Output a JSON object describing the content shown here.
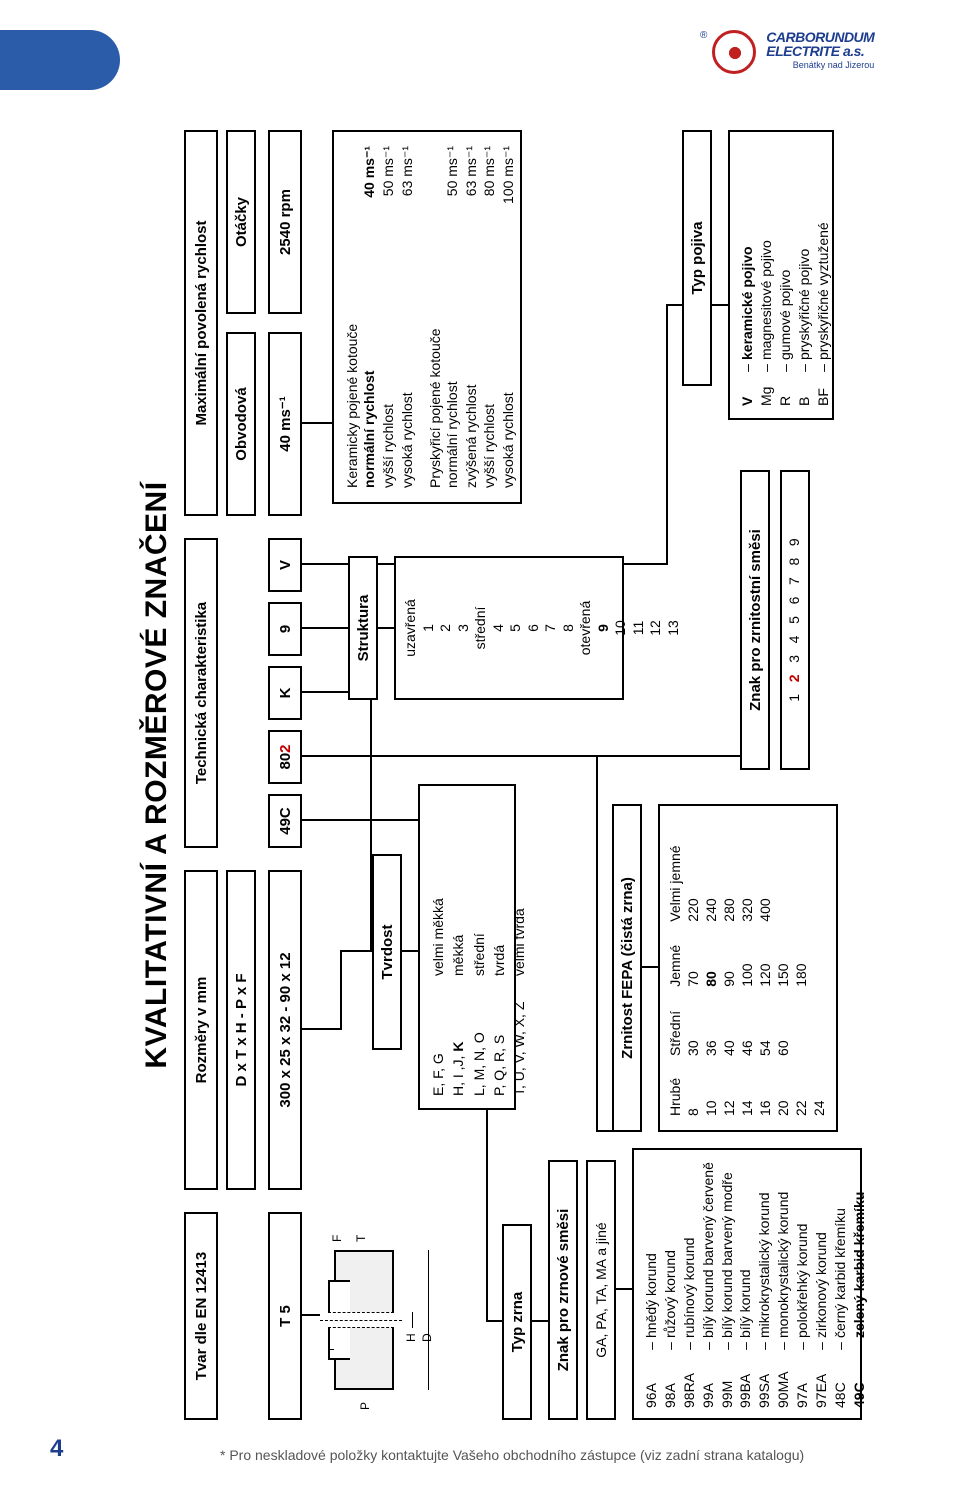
{
  "page": {
    "number": "4",
    "footnote": "* Pro neskladové položky kontaktujte Vašeho obchodního zástupce (viz zadní strana katalogu)"
  },
  "logo": {
    "line1": "CARBORUNDUM",
    "line2": "ELECTRITE a.s.",
    "sub": "Benátky nad Jizerou",
    "reg": "®"
  },
  "title": "KVALITATIVNÍ A ROZMĚROVÉ ZNAČENÍ",
  "headers": {
    "tvar": "Tvar dle EN 12413",
    "rozmery": "Rozměry v mm",
    "rozmery_sub": "D x T x H - P x F",
    "tech": "Technická charakteristika",
    "max": "Maximální povolená rychlost",
    "obvodova": "Obvodová",
    "otacky": "Otáčky"
  },
  "values": {
    "tvar": "T 5",
    "rozmery": "300 x 25 x 32 - 90 x 12",
    "code1": "49C",
    "code2a": "80",
    "code2b": "2",
    "code3": "K",
    "code4": "9",
    "code5": "V",
    "obvodova": "40 ms⁻¹",
    "otacky": "2540 rpm"
  },
  "shape_labels": {
    "P": "P",
    "F": "F",
    "T": "T",
    "H": "H",
    "D": "D"
  },
  "section_titles": {
    "typzrna": "Typ zrna",
    "znak_zrnove": "Znak pro zrnové směsi",
    "znak_zrnove_sub": "GA, PA, TA, MA a jiné",
    "tvrdost": "Tvrdost",
    "struktura": "Struktura",
    "zrnitost": "Zrnitost FEPA (čistá zrna)",
    "znak_zrnitostni": "Znak pro zrnitostní směsi",
    "typpojiva": "Typ pojiva"
  },
  "grain_types": [
    {
      "code": "96A",
      "name": "hnědý korund",
      "bold": false
    },
    {
      "code": "98A",
      "name": "růžový korund",
      "bold": false
    },
    {
      "code": "98RA",
      "name": "rubínový korund",
      "bold": false
    },
    {
      "code": "99A",
      "name": "bílý korund barvený červeně",
      "bold": false
    },
    {
      "code": "99M",
      "name": "bílý korund barvený modře",
      "bold": false
    },
    {
      "code": "99BA",
      "name": "bílý korund",
      "bold": false
    },
    {
      "code": "99SA",
      "name": "mikrokrystalický korund",
      "bold": false
    },
    {
      "code": "90MA",
      "name": "monokrystalický korund",
      "bold": false
    },
    {
      "code": "97A",
      "name": "polokřehký korund",
      "bold": false
    },
    {
      "code": "97EA",
      "name": "zirkonový korund",
      "bold": false
    },
    {
      "code": "48C",
      "name": "černý karbid křemíku",
      "bold": false
    },
    {
      "code": "49C",
      "name": "zelený karbid křemíku",
      "bold": true
    }
  ],
  "hardness": [
    {
      "codes": "E, F, G",
      "label": "velmi měkká"
    },
    {
      "codes": "H, I ,J, <b>K</b>",
      "label": "měkká"
    },
    {
      "codes": "L, M, N, O",
      "label": "střední"
    },
    {
      "codes": "P, Q, R, S",
      "label": "tvrdá"
    },
    {
      "codes": "T, U, V, W, X, Z",
      "label": "velmi tvrdá"
    }
  ],
  "structure": {
    "closed_label": "uzavřená",
    "closed": [
      "1",
      "2",
      "3"
    ],
    "mid_label": "střední",
    "mid": [
      "4",
      "5",
      "6",
      "7",
      "8"
    ],
    "open_label": "otevřená",
    "open": [
      "9",
      "10",
      "11",
      "12",
      "13"
    ],
    "bold": "9"
  },
  "grit": {
    "headers": [
      "Hrubé",
      "Střední",
      "Jemné",
      "Velmi jemné"
    ],
    "cols": [
      [
        "8",
        "10",
        "12",
        "14",
        "16",
        "20",
        "22",
        "24"
      ],
      [
        "30",
        "36",
        "40",
        "46",
        "54",
        "60",
        "",
        ""
      ],
      [
        "70",
        "80",
        "90",
        "100",
        "120",
        "150",
        "180",
        ""
      ],
      [
        "220",
        "240",
        "280",
        "320",
        "400",
        "",
        "",
        ""
      ]
    ],
    "bold": "80"
  },
  "grit_mix": {
    "values": [
      "1",
      "2",
      "3",
      "4",
      "5",
      "6",
      "7",
      "8",
      "9"
    ],
    "bold": "2"
  },
  "speeds": {
    "ceramic_title": "Keramicky pojené kotouče",
    "ceramic": [
      {
        "label": "normální rychlost",
        "val": "40 ms⁻¹",
        "bold": true
      },
      {
        "label": "vyšší rychlost",
        "val": "50 ms⁻¹",
        "bold": false
      },
      {
        "label": "vysoká rychlost",
        "val": "63 ms⁻¹",
        "bold": false
      }
    ],
    "resin_title": "Pryskyřicí pojené kotouče",
    "resin": [
      {
        "label": "normální rychlost",
        "val": "50 ms⁻¹",
        "bold": false
      },
      {
        "label": "zvýšená rychlost",
        "val": "63 ms⁻¹",
        "bold": false
      },
      {
        "label": "vyšší rychlost",
        "val": "80 ms⁻¹",
        "bold": false
      },
      {
        "label": "vysoká rychlost",
        "val": "100 ms⁻¹",
        "bold": false
      }
    ]
  },
  "bond_types": [
    {
      "code": "V",
      "name": "keramické pojivo",
      "bold": true
    },
    {
      "code": "Mg",
      "name": "magnesitové pojivo",
      "bold": false
    },
    {
      "code": "R",
      "name": "gumové pojivo",
      "bold": false
    },
    {
      "code": "B",
      "name": "pryskyřičné pojivo",
      "bold": false
    },
    {
      "code": "BF",
      "name": "pryskyřičné vyztužené",
      "bold": false
    }
  ],
  "colors": {
    "accent": "#2a5caa",
    "red": "#c00000",
    "text": "#000000"
  }
}
